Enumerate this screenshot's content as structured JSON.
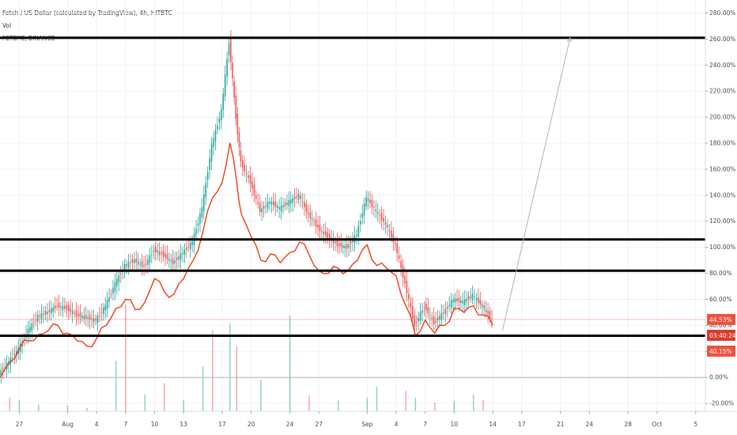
{
  "legend": {
    "main_title": "Fetch / US Dollar (calculated by TradingView), 4h, HITBTC",
    "volume_label": "Vol",
    "compare_label": "FETBTC, BINANCE"
  },
  "colors": {
    "up": "#26a69a",
    "down": "#ef5350",
    "compare_line": "#f23a12",
    "level_line": "#000000",
    "arrow": "#b2b2b2",
    "baseline": "#b4b4b4",
    "grid": "#eef1f5",
    "current_tag": "#f0513f",
    "countdown_tag": "#d93a2a"
  },
  "chart_data": {
    "type": "line",
    "y_unit": "percent change",
    "ylim": [
      -26,
      290
    ],
    "x_range": [
      "2019-07-25",
      "2019-10-06"
    ],
    "y_ticks": [
      "280.00%",
      "260.00%",
      "240.00%",
      "220.00%",
      "200.00%",
      "180.00%",
      "160.00%",
      "140.00%",
      "120.00%",
      "100.00%",
      "80.00%",
      "60.00%",
      "40.00%",
      "20.00%",
      "0.00%",
      "-20.00%"
    ],
    "y_tick_values": [
      280,
      260,
      240,
      220,
      200,
      180,
      160,
      140,
      120,
      100,
      80,
      60,
      40,
      20,
      0,
      -20
    ],
    "x_ticks": [
      {
        "label": "27",
        "date": "2019-07-27"
      },
      {
        "label": "Aug",
        "date": "2019-08-01"
      },
      {
        "label": "4",
        "date": "2019-08-04"
      },
      {
        "label": "7",
        "date": "2019-08-07"
      },
      {
        "label": "10",
        "date": "2019-08-10"
      },
      {
        "label": "13",
        "date": "2019-08-13"
      },
      {
        "label": "17",
        "date": "2019-08-17"
      },
      {
        "label": "20",
        "date": "2019-08-20"
      },
      {
        "label": "24",
        "date": "2019-08-24"
      },
      {
        "label": "27",
        "date": "2019-08-27"
      },
      {
        "label": "Sep",
        "date": "2019-09-01"
      },
      {
        "label": "4",
        "date": "2019-09-04"
      },
      {
        "label": "7",
        "date": "2019-09-07"
      },
      {
        "label": "10",
        "date": "2019-09-10"
      },
      {
        "label": "14",
        "date": "2019-09-14"
      },
      {
        "label": "17",
        "date": "2019-09-17"
      },
      {
        "label": "21",
        "date": "2019-09-21"
      },
      {
        "label": "24",
        "date": "2019-09-24"
      },
      {
        "label": "28",
        "date": "2019-09-28"
      },
      {
        "label": "Oct",
        "date": "2019-10-01"
      },
      {
        "label": "5",
        "date": "2019-10-05"
      }
    ],
    "series": [
      {
        "kind": "candlestick",
        "points": [
          [
            "2019-07-25",
            3
          ],
          [
            "2019-07-26",
            12
          ],
          [
            "2019-07-27",
            22
          ],
          [
            "2019-07-28",
            36
          ],
          [
            "2019-07-29",
            47
          ],
          [
            "2019-07-30",
            50
          ],
          [
            "2019-07-31",
            55
          ],
          [
            "2019-08-01",
            53
          ],
          [
            "2019-08-02",
            48
          ],
          [
            "2019-08-03",
            46
          ],
          [
            "2019-08-04",
            44
          ],
          [
            "2019-08-05",
            55
          ],
          [
            "2019-08-06",
            72
          ],
          [
            "2019-08-07",
            86
          ],
          [
            "2019-08-08",
            90
          ],
          [
            "2019-08-09",
            85
          ],
          [
            "2019-08-10",
            98
          ],
          [
            "2019-08-11",
            94
          ],
          [
            "2019-08-12",
            88
          ],
          [
            "2019-08-13",
            96
          ],
          [
            "2019-08-14",
            104
          ],
          [
            "2019-08-15",
            130
          ],
          [
            "2019-08-16",
            178
          ],
          [
            "2019-08-17",
            205
          ],
          [
            "2019-08-17.8",
            258
          ],
          [
            "2019-08-18.5",
            200
          ],
          [
            "2019-08-19",
            165
          ],
          [
            "2019-08-20",
            150
          ],
          [
            "2019-08-21",
            128
          ],
          [
            "2019-08-22",
            135
          ],
          [
            "2019-08-23",
            130
          ],
          [
            "2019-08-24",
            135
          ],
          [
            "2019-08-25",
            140
          ],
          [
            "2019-08-26",
            125
          ],
          [
            "2019-08-27",
            115
          ],
          [
            "2019-08-28",
            108
          ],
          [
            "2019-08-29",
            102
          ],
          [
            "2019-08-30",
            100
          ],
          [
            "2019-08-31",
            110
          ],
          [
            "2019-09-01",
            138
          ],
          [
            "2019-09-02",
            128
          ],
          [
            "2019-09-03",
            118
          ],
          [
            "2019-09-04",
            102
          ],
          [
            "2019-09-05",
            72
          ],
          [
            "2019-09-06",
            40
          ],
          [
            "2019-09-07",
            55
          ],
          [
            "2019-09-08",
            42
          ],
          [
            "2019-09-09",
            50
          ],
          [
            "2019-09-10",
            60
          ],
          [
            "2019-09-11",
            58
          ],
          [
            "2019-09-12",
            63
          ],
          [
            "2019-09-13",
            55
          ],
          [
            "2019-09-14",
            44.53
          ]
        ]
      },
      {
        "name": "FETBTC, BINANCE",
        "kind": "line",
        "points": [
          [
            "2019-07-25",
            0
          ],
          [
            "2019-07-26",
            12
          ],
          [
            "2019-07-27",
            22
          ],
          [
            "2019-07-28",
            28
          ],
          [
            "2019-07-29",
            33
          ],
          [
            "2019-07-30",
            36
          ],
          [
            "2019-07-31",
            40
          ],
          [
            "2019-08-01",
            34
          ],
          [
            "2019-08-02",
            28
          ],
          [
            "2019-08-03",
            24
          ],
          [
            "2019-08-04",
            30
          ],
          [
            "2019-08-05",
            40
          ],
          [
            "2019-08-06",
            53
          ],
          [
            "2019-08-07",
            60
          ],
          [
            "2019-08-08",
            52
          ],
          [
            "2019-08-09",
            58
          ],
          [
            "2019-08-10",
            76
          ],
          [
            "2019-08-11",
            66
          ],
          [
            "2019-08-12",
            64
          ],
          [
            "2019-08-13",
            76
          ],
          [
            "2019-08-14",
            90
          ],
          [
            "2019-08-15",
            112
          ],
          [
            "2019-08-16",
            138
          ],
          [
            "2019-08-17",
            150
          ],
          [
            "2019-08-17.8",
            180
          ],
          [
            "2019-08-18.5",
            150
          ],
          [
            "2019-08-19",
            125
          ],
          [
            "2019-08-20",
            108
          ],
          [
            "2019-08-21",
            90
          ],
          [
            "2019-08-22",
            95
          ],
          [
            "2019-08-23",
            88
          ],
          [
            "2019-08-24",
            96
          ],
          [
            "2019-08-25",
            104
          ],
          [
            "2019-08-26",
            94
          ],
          [
            "2019-08-27",
            82
          ],
          [
            "2019-08-28",
            80
          ],
          [
            "2019-08-29",
            84
          ],
          [
            "2019-08-30",
            82
          ],
          [
            "2019-08-31",
            90
          ],
          [
            "2019-09-01",
            102
          ],
          [
            "2019-09-02",
            86
          ],
          [
            "2019-09-03",
            84
          ],
          [
            "2019-09-04",
            78
          ],
          [
            "2019-09-05",
            55
          ],
          [
            "2019-09-06",
            32
          ],
          [
            "2019-09-07",
            44
          ],
          [
            "2019-09-08",
            34
          ],
          [
            "2019-09-09",
            40
          ],
          [
            "2019-09-10",
            53
          ],
          [
            "2019-09-11",
            50
          ],
          [
            "2019-09-12",
            55
          ],
          [
            "2019-09-13",
            48
          ],
          [
            "2019-09-14",
            40.15
          ]
        ]
      }
    ],
    "volume": [
      [
        "2019-07-26",
        12,
        "down"
      ],
      [
        "2019-07-27",
        10,
        "up"
      ],
      [
        "2019-07-29",
        6,
        "up"
      ],
      [
        "2019-08-01",
        5,
        "down"
      ],
      [
        "2019-08-03",
        3,
        "up"
      ],
      [
        "2019-08-06",
        45,
        "up"
      ],
      [
        "2019-08-07",
        95,
        "down"
      ],
      [
        "2019-08-09",
        15,
        "up"
      ],
      [
        "2019-08-11",
        25,
        "down"
      ],
      [
        "2019-08-13",
        10,
        "up"
      ],
      [
        "2019-08-15",
        40,
        "up"
      ],
      [
        "2019-08-16",
        72,
        "down"
      ],
      [
        "2019-08-17.8",
        78,
        "up"
      ],
      [
        "2019-08-18.5",
        58,
        "down"
      ],
      [
        "2019-08-21",
        28,
        "up"
      ],
      [
        "2019-08-24",
        85,
        "up"
      ],
      [
        "2019-08-26",
        14,
        "down"
      ],
      [
        "2019-08-29",
        10,
        "up"
      ],
      [
        "2019-09-01",
        12,
        "up"
      ],
      [
        "2019-09-02",
        22,
        "up"
      ],
      [
        "2019-09-05",
        18,
        "down"
      ],
      [
        "2019-09-06",
        12,
        "up"
      ],
      [
        "2019-09-08",
        8,
        "down"
      ],
      [
        "2019-09-10",
        9,
        "up"
      ],
      [
        "2019-09-12",
        15,
        "up"
      ],
      [
        "2019-09-13",
        10,
        "down"
      ]
    ],
    "horizontal_levels": [
      261,
      106,
      82,
      32
    ],
    "arrow": {
      "from": [
        "2019-09-15",
        36
      ],
      "to": [
        "2019-09-22",
        261
      ]
    },
    "baseline_value": 0,
    "current_value": {
      "label": "44.53%",
      "value": 44.53
    },
    "countdown": {
      "label": "03:40:24"
    },
    "compare_value": {
      "label": "40.15%",
      "value": 40.15
    },
    "grid": true,
    "legend_position": "top-left"
  }
}
